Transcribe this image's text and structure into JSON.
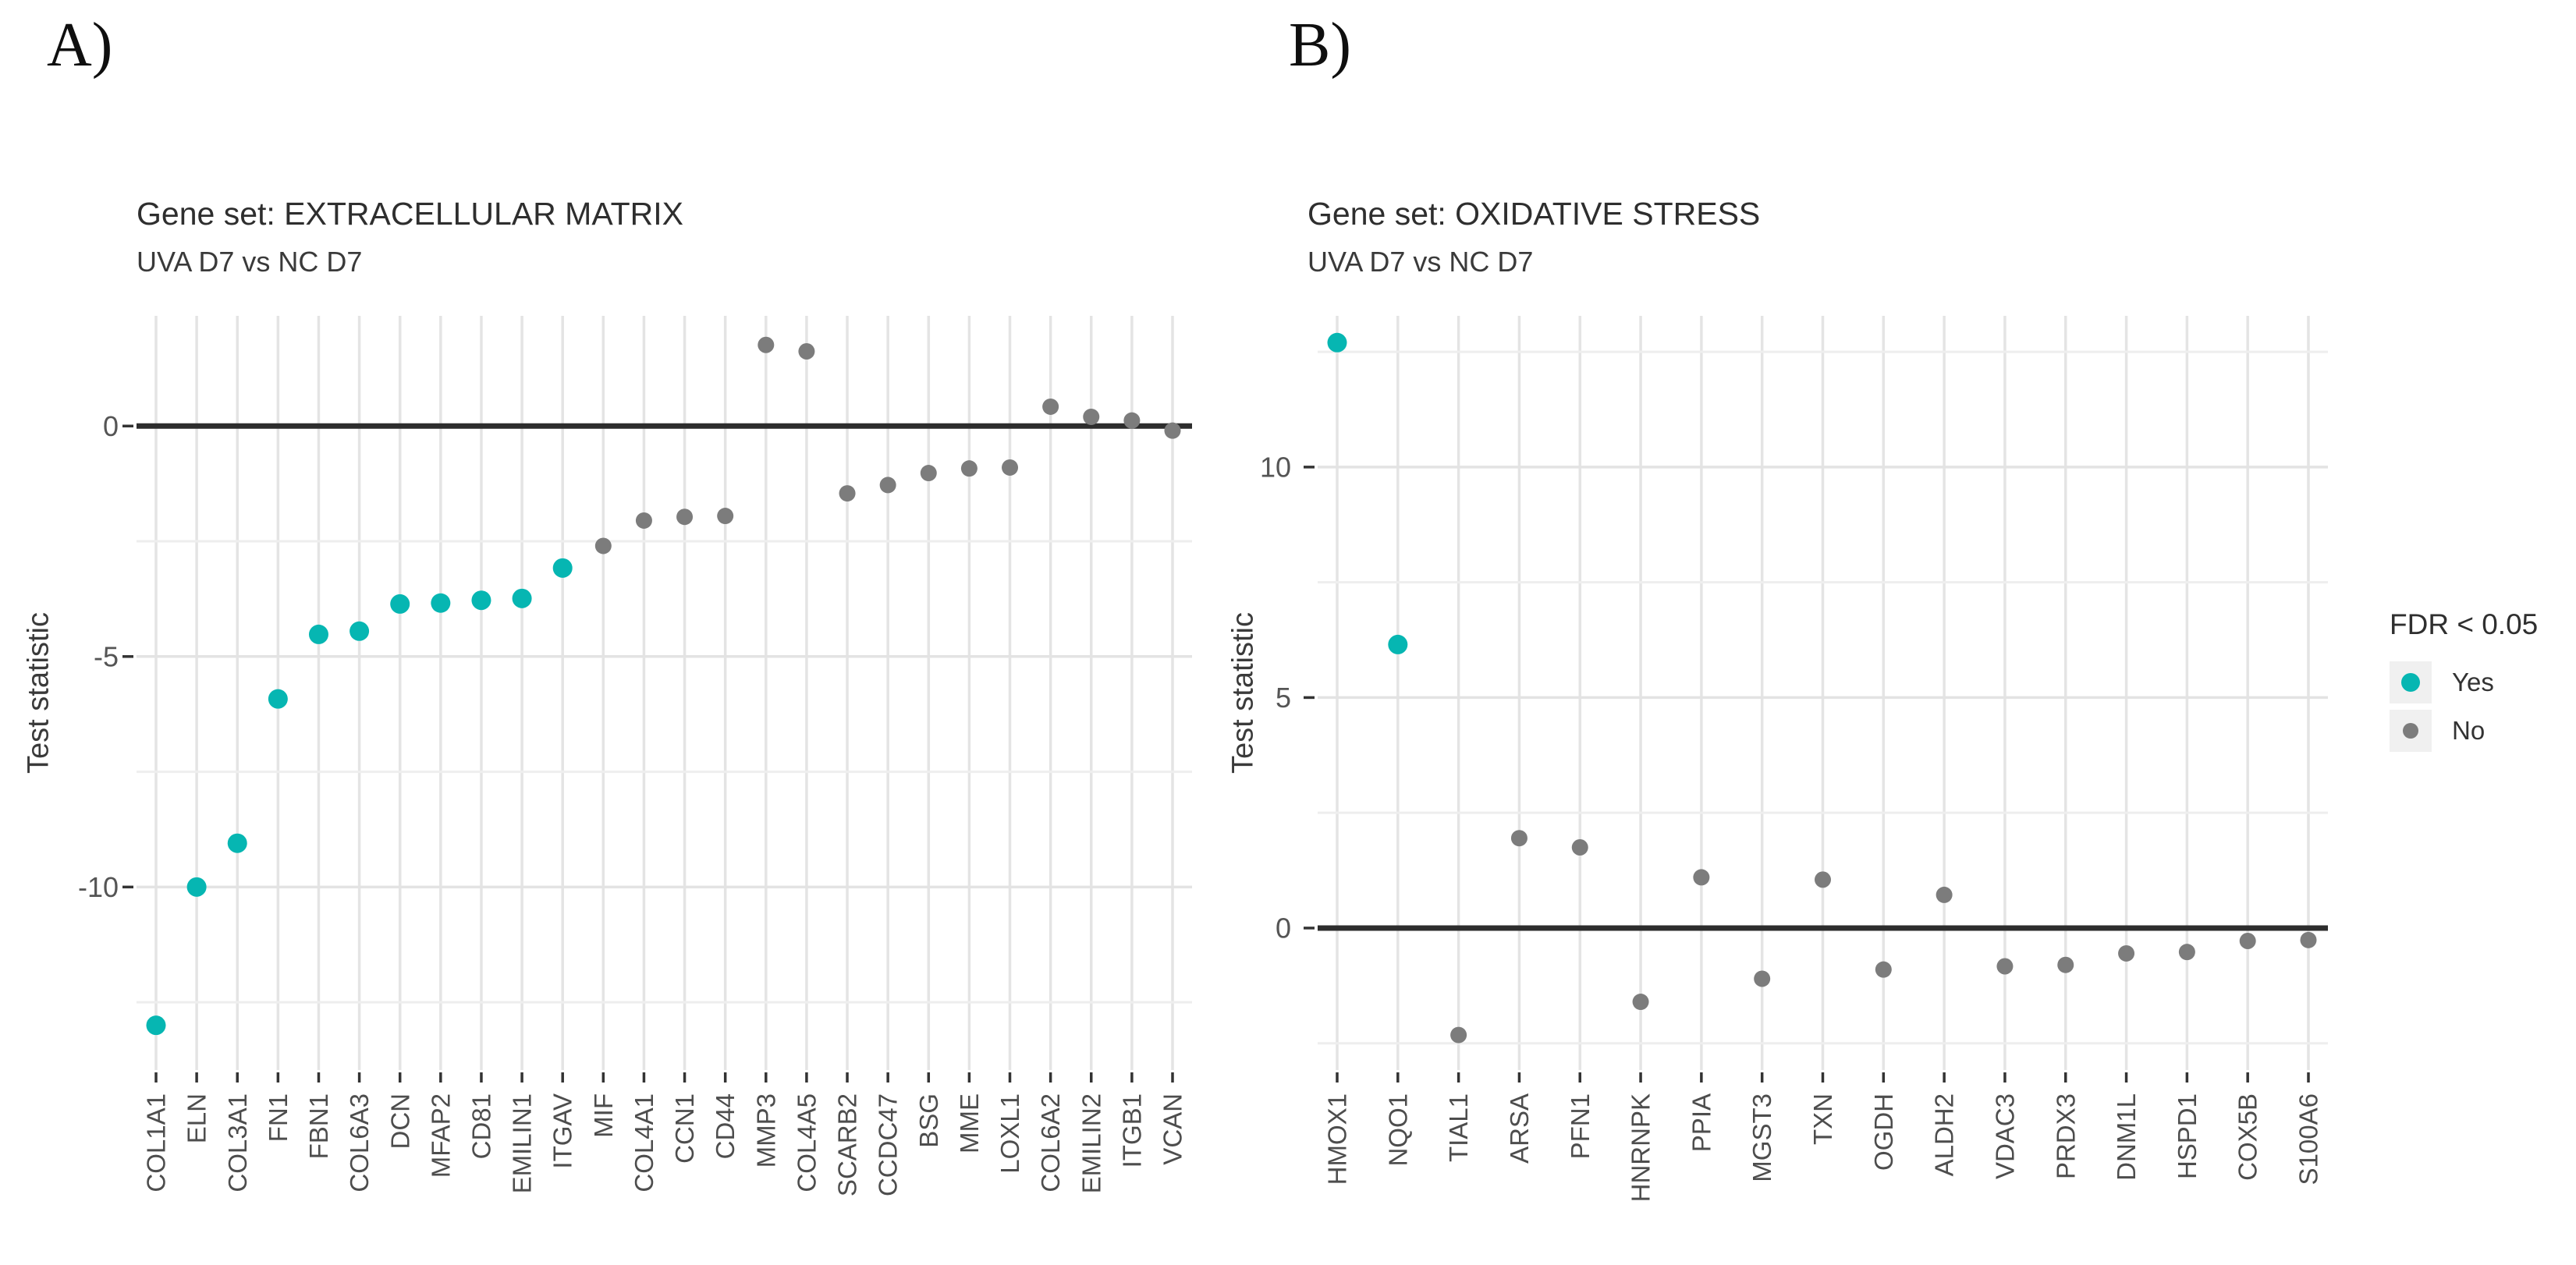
{
  "panel_a": {
    "letter": "A)",
    "title": "Gene set: EXTRACELLULAR MATRIX",
    "subtitle": "UVA D7 vs NC D7",
    "ylabel": "Test statistic"
  },
  "panel_b": {
    "letter": "B)",
    "title": "Gene set: OXIDATIVE STRESS",
    "subtitle": "UVA D7 vs NC D7",
    "ylabel": "Test statistic"
  },
  "legend": {
    "title": "FDR < 0.05",
    "items": [
      {
        "label": "Yes",
        "color": "#06b6b2",
        "diameter": 24
      },
      {
        "label": "No",
        "color": "#7c7c7c",
        "diameter": 20
      }
    ]
  },
  "colors": {
    "significant": "#06b6b2",
    "not_significant": "#7c7c7c",
    "zero_line": "#2d2d2d",
    "grid_major": "#e3e3e3",
    "grid_minor": "#eeeeee",
    "grid_vertical": "#e4e4e4",
    "tick_mark": "#333333",
    "axis_text": "#555555",
    "gene_label_text": "#4d4d4d",
    "ylabel_text": "#3a3a3a"
  },
  "chart_data": [
    {
      "id": "A",
      "type": "scatter",
      "title": "Gene set: EXTRACELLULAR MATRIX",
      "subtitle": "UVA D7 vs NC D7",
      "xlabel": "",
      "ylabel": "Test statistic",
      "yticks": [
        0,
        -5,
        -10
      ],
      "ylim": [
        -13.97,
        2.39
      ],
      "minor_grid_step": 2.5,
      "zero_line": true,
      "grid": true,
      "legend_position": "none",
      "categories": [
        "COL1A1",
        "ELN",
        "COL3A1",
        "FN1",
        "FBN1",
        "COL6A3",
        "DCN",
        "MFAP2",
        "CD81",
        "EMILIN1",
        "ITGAV",
        "MIF",
        "COL4A1",
        "CCN1",
        "CD44",
        "MMP3",
        "COL4A5",
        "SCARB2",
        "CCDC47",
        "BSG",
        "MME",
        "LOXL1",
        "COL6A2",
        "EMILIN2",
        "ITGB1",
        "VCAN"
      ],
      "values": [
        -13.0,
        -10.0,
        -9.05,
        -5.92,
        -4.52,
        -4.45,
        -3.86,
        -3.84,
        -3.78,
        -3.74,
        -3.08,
        -2.6,
        -2.05,
        -1.97,
        -1.95,
        1.76,
        1.62,
        -1.46,
        -1.28,
        -1.02,
        -0.92,
        -0.9,
        0.42,
        0.2,
        0.12,
        -0.1
      ],
      "fdr_lt_005": [
        "Yes",
        "Yes",
        "Yes",
        "Yes",
        "Yes",
        "Yes",
        "Yes",
        "Yes",
        "Yes",
        "Yes",
        "Yes",
        "No",
        "No",
        "No",
        "No",
        "No",
        "No",
        "No",
        "No",
        "No",
        "No",
        "No",
        "No",
        "No",
        "No",
        "No"
      ]
    },
    {
      "id": "B",
      "type": "scatter",
      "title": "Gene set: OXIDATIVE STRESS",
      "subtitle": "UVA D7 vs NC D7",
      "xlabel": "",
      "ylabel": "Test statistic",
      "yticks": [
        10,
        5,
        0
      ],
      "ylim": [
        -3.08,
        13.28
      ],
      "minor_grid_step": 2.5,
      "zero_line": true,
      "grid": true,
      "legend_position": "right",
      "categories": [
        "HMOX1",
        "NQO1",
        "TIAL1",
        "ARSA",
        "PFN1",
        "HNRNPK",
        "PPIA",
        "MGST3",
        "TXN",
        "OGDH",
        "ALDH2",
        "VDAC3",
        "PRDX3",
        "DNM1L",
        "HSPD1",
        "COX5B",
        "S100A6"
      ],
      "values": [
        12.7,
        6.15,
        -2.32,
        1.95,
        1.75,
        -1.6,
        1.1,
        -1.1,
        1.05,
        -0.9,
        0.72,
        -0.83,
        -0.8,
        -0.55,
        -0.52,
        -0.28,
        -0.26
      ],
      "fdr_lt_005": [
        "Yes",
        "Yes",
        "No",
        "No",
        "No",
        "No",
        "No",
        "No",
        "No",
        "No",
        "No",
        "No",
        "No",
        "No",
        "No",
        "No",
        "No"
      ]
    }
  ]
}
